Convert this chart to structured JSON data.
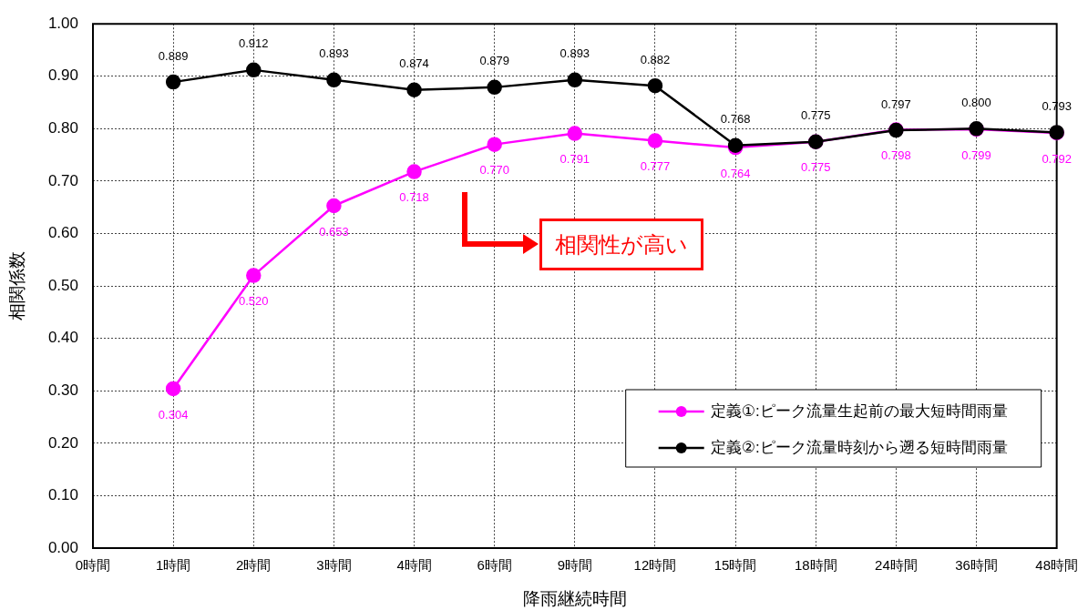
{
  "chart_data": {
    "type": "line",
    "xlabel": "降雨継続時間",
    "ylabel": "相関係数",
    "categories": [
      "0時間",
      "1時間",
      "2時間",
      "3時間",
      "4時間",
      "6時間",
      "9時間",
      "12時間",
      "15時間",
      "18時間",
      "24時間",
      "36時間",
      "48時間"
    ],
    "series": [
      {
        "name": "定義①:ピーク流量生起前の最大短時間雨量",
        "color": "#ff00ff",
        "values": [
          null,
          0.304,
          0.52,
          0.653,
          0.718,
          0.77,
          0.791,
          0.777,
          0.764,
          0.775,
          0.798,
          0.799,
          0.792
        ],
        "value_labels": [
          null,
          "0.304",
          "0.520",
          "0.653",
          "0.718",
          "0.770",
          "0.791",
          "0.777",
          "0.764",
          "0.775",
          "0.798",
          "0.799",
          "0.792"
        ]
      },
      {
        "name": "定義②:ピーク流量時刻から遡る短時間雨量",
        "color": "#000000",
        "values": [
          null,
          0.889,
          0.912,
          0.893,
          0.874,
          0.879,
          0.893,
          0.882,
          0.768,
          0.775,
          0.797,
          0.8,
          0.793
        ],
        "value_labels": [
          null,
          "0.889",
          "0.912",
          "0.893",
          "0.874",
          "0.879",
          "0.893",
          "0.882",
          "0.768",
          "0.775",
          "0.797",
          "0.800",
          "0.793"
        ]
      }
    ],
    "ylim": [
      0,
      1
    ],
    "yticks": [
      {
        "value": 0,
        "label": "0.00"
      },
      {
        "value": 0.1,
        "label": "0.10"
      },
      {
        "value": 0.2,
        "label": "0.20"
      },
      {
        "value": 0.3,
        "label": "0.30"
      },
      {
        "value": 0.4,
        "label": "0.40"
      },
      {
        "value": 0.5,
        "label": "0.50"
      },
      {
        "value": 0.6,
        "label": "0.60"
      },
      {
        "value": 0.7,
        "label": "0.70"
      },
      {
        "value": 0.8,
        "label": "0.80"
      },
      {
        "value": 0.9,
        "label": "0.90"
      },
      {
        "value": 1,
        "label": "1.00"
      }
    ],
    "grid": true,
    "legend": "bottom right",
    "marker": "circle",
    "line_style": "solid",
    "annotations": [
      "相関性が高い"
    ]
  }
}
